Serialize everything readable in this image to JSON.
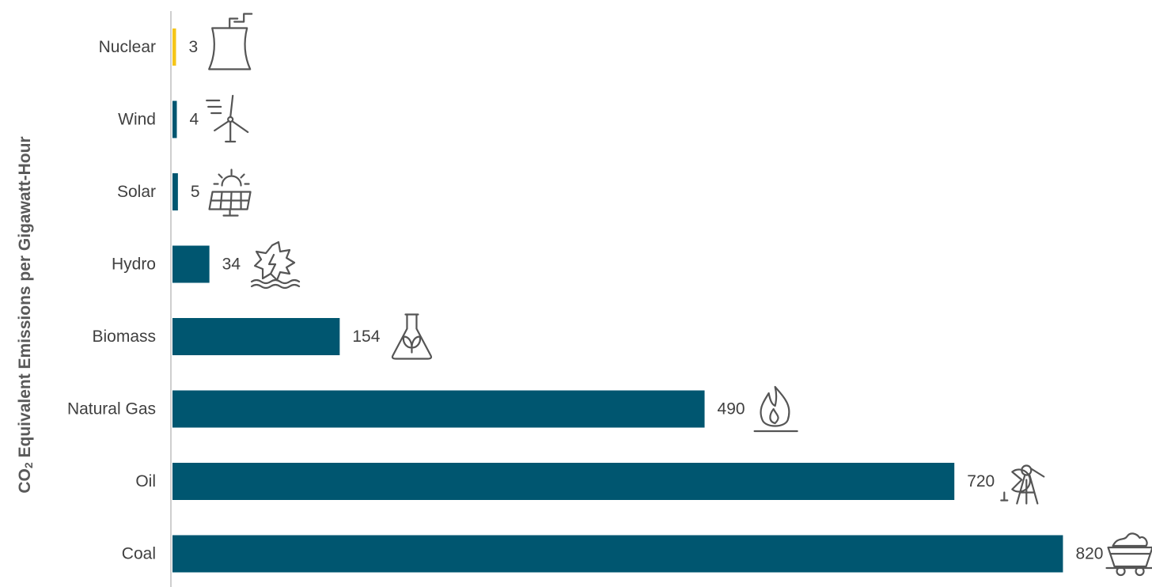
{
  "chart_data": {
    "type": "bar",
    "orientation": "horizontal",
    "ylabel_parts": [
      "CO",
      "2",
      " Equivalent Emissions per Gigawatt-Hour"
    ],
    "categories": [
      "Nuclear",
      "Wind",
      "Solar",
      "Hydro",
      "Biomass",
      "Natural Gas",
      "Oil",
      "Coal"
    ],
    "values": [
      3,
      4,
      5,
      34,
      154,
      490,
      720,
      820
    ],
    "value_labels": [
      "3",
      "4",
      "5",
      "34",
      "154",
      "490",
      "720",
      "820"
    ],
    "icons": [
      "cooling-tower-icon",
      "wind-turbine-icon",
      "solar-panel-icon",
      "hydro-turbine-icon",
      "biomass-flask-icon",
      "gas-flame-icon",
      "oil-pump-icon",
      "coal-cart-icon"
    ],
    "bar_colors": [
      "#F5C518",
      "#005670",
      "#005670",
      "#005670",
      "#005670",
      "#005670",
      "#005670",
      "#005670"
    ],
    "grid": false,
    "legend": "none"
  },
  "colors": {
    "bar": "#005670",
    "highlight": "#F5C518",
    "text": "#404040",
    "icon": "#555555",
    "axis": "#bfbfbf"
  }
}
